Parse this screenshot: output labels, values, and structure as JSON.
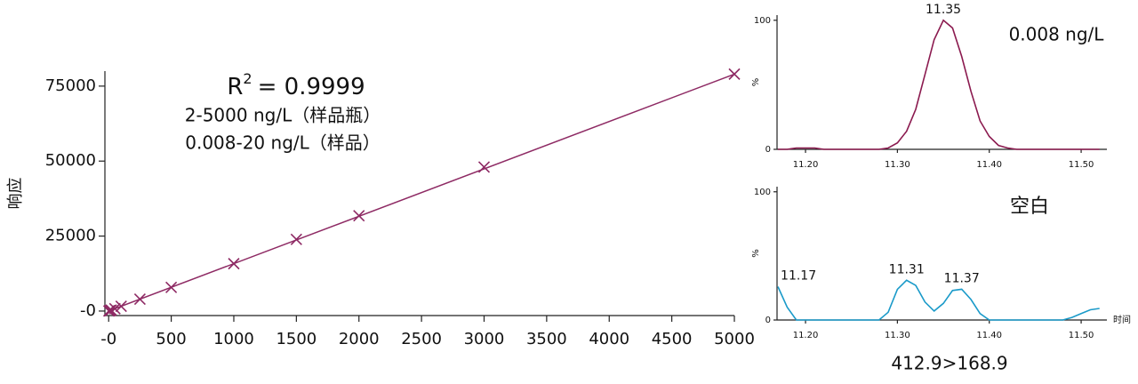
{
  "chart_data": [
    {
      "type": "scatter",
      "color": "#8e2a64",
      "x": [
        2,
        5,
        10,
        20,
        50,
        100,
        250,
        500,
        1000,
        1500,
        2000,
        3000,
        5000
      ],
      "values": [
        32,
        80,
        160,
        320,
        790,
        1580,
        3950,
        7900,
        15800,
        23900,
        31800,
        48000,
        79000
      ],
      "fit": {
        "x": [
          0,
          5000
        ],
        "values": [
          0,
          79000
        ]
      },
      "xlim": [
        -30,
        5000
      ],
      "ylim": [
        -1500,
        80000
      ],
      "xticks": [
        {
          "value": 0,
          "label": "-0"
        },
        500,
        1000,
        1500,
        2000,
        2500,
        3000,
        3500,
        4000,
        4500,
        5000
      ],
      "yticks": [
        {
          "value": 0,
          "label": "-0"
        },
        25000,
        50000,
        75000
      ],
      "y_label": "响应",
      "r_squared": {
        "symbol": "R",
        "exponent": "2",
        "value": "= 0.9999"
      },
      "annotations": [
        "2-5000 ng/L（样品瓶）",
        "0.008-20 ng/L（样品）"
      ]
    },
    {
      "type": "line",
      "color": "#8b1a4f",
      "x": [
        11.17,
        11.18,
        11.19,
        11.2,
        11.21,
        11.22,
        11.23,
        11.24,
        11.25,
        11.26,
        11.27,
        11.28,
        11.29,
        11.3,
        11.31,
        11.32,
        11.33,
        11.34,
        11.35,
        11.36,
        11.37,
        11.38,
        11.39,
        11.4,
        11.41,
        11.42,
        11.43,
        11.44,
        11.45,
        11.46,
        11.47,
        11.48,
        11.49,
        11.5,
        11.51,
        11.52
      ],
      "values": [
        0,
        0,
        1,
        1,
        1,
        0,
        0,
        0,
        0,
        0,
        0,
        0,
        1,
        5,
        14,
        31,
        58,
        85,
        100,
        94,
        72,
        45,
        22,
        10,
        3,
        1,
        0,
        0,
        0,
        0,
        0,
        0,
        0,
        0,
        0,
        0
      ],
      "xlim": [
        11.169,
        11.528
      ],
      "ylim": [
        0,
        104
      ],
      "xticks": [
        {
          "value": 11.2,
          "label": "11.20"
        },
        {
          "value": 11.3,
          "label": "11.30"
        },
        {
          "value": 11.4,
          "label": "11.40"
        },
        {
          "value": 11.5,
          "label": "11.50"
        }
      ],
      "yticks": [
        0,
        100
      ],
      "y_label": "%",
      "peaks": [
        11.35
      ],
      "annotation": "0.008 ng/L"
    },
    {
      "type": "line",
      "color": "#1a9ac9",
      "x": [
        11.17,
        11.18,
        11.19,
        11.2,
        11.21,
        11.22,
        11.23,
        11.24,
        11.25,
        11.26,
        11.27,
        11.28,
        11.29,
        11.3,
        11.31,
        11.32,
        11.33,
        11.34,
        11.35,
        11.36,
        11.37,
        11.38,
        11.39,
        11.4,
        11.41,
        11.42,
        11.43,
        11.44,
        11.45,
        11.46,
        11.47,
        11.48,
        11.49,
        11.5,
        11.51,
        11.52
      ],
      "values": [
        26,
        10,
        0,
        0,
        0,
        0,
        0,
        0,
        0,
        0,
        0,
        0,
        6,
        24,
        31,
        27,
        14,
        7,
        13,
        23,
        24,
        16,
        5,
        0,
        0,
        0,
        0,
        0,
        0,
        0,
        0,
        0,
        2,
        5,
        8,
        9
      ],
      "xlim": [
        11.169,
        11.528
      ],
      "ylim": [
        0,
        104
      ],
      "xticks": [
        {
          "value": 11.2,
          "label": "11.20"
        },
        {
          "value": 11.3,
          "label": "11.30"
        },
        {
          "value": 11.4,
          "label": "11.40"
        },
        {
          "value": 11.5,
          "label": "11.50"
        }
      ],
      "yticks": [
        0,
        100
      ],
      "y_label": "%",
      "x_label": "时间",
      "peaks": [
        11.17,
        11.31,
        11.37
      ],
      "annotation": "空白",
      "caption": "412.9>168.9"
    }
  ]
}
